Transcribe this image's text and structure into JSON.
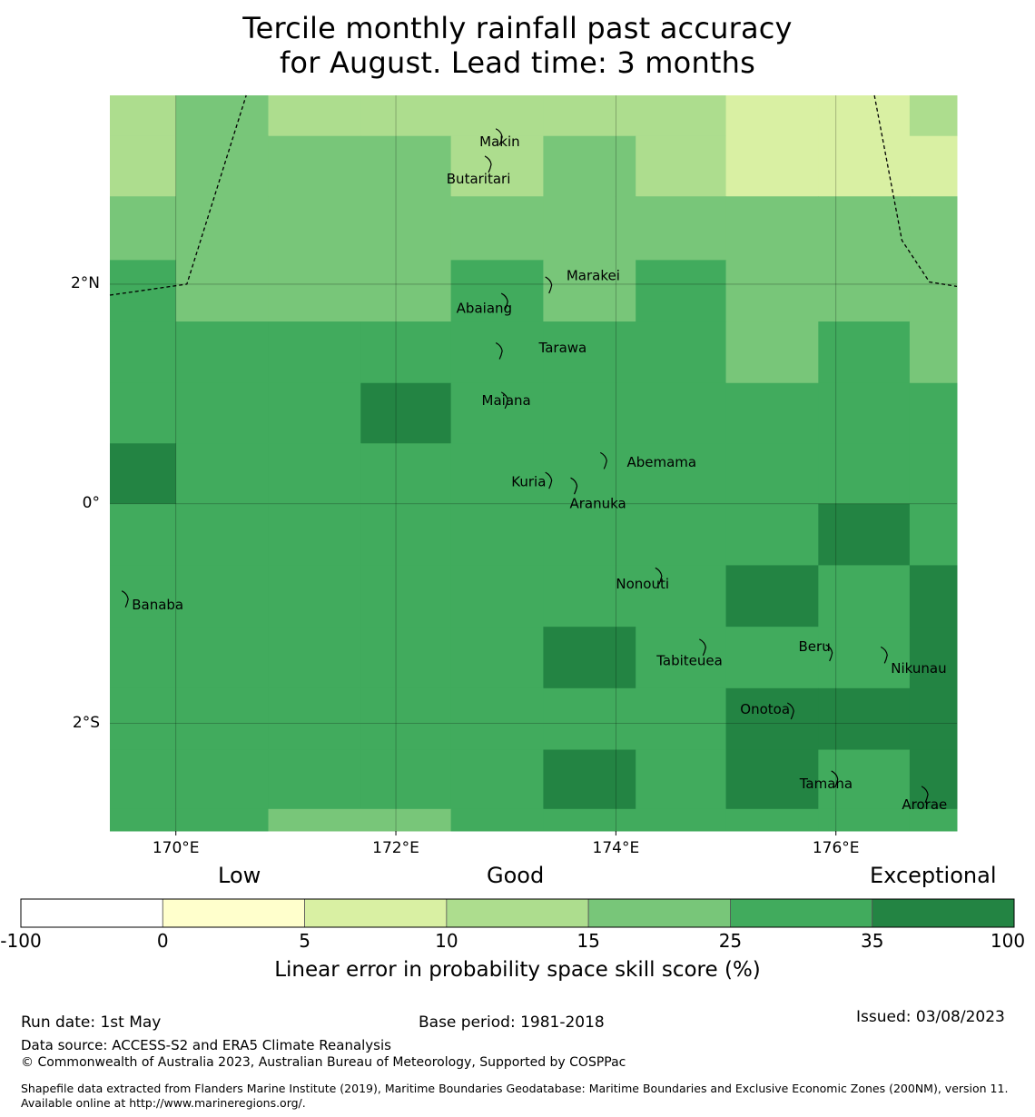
{
  "title": {
    "line1": "Tercile monthly rainfall past accuracy",
    "line2": "for August. Lead time: 3 months"
  },
  "map": {
    "extent": {
      "lon_min": 169.4,
      "lon_max": 177.1,
      "lat_min": -2.98,
      "lat_max": 3.72
    },
    "lat_ticks": [
      {
        "value": 2,
        "label": "2°N"
      },
      {
        "value": 0,
        "label": "0°"
      },
      {
        "value": -2,
        "label": "2°S"
      }
    ],
    "lon_ticks": [
      {
        "value": 170,
        "label": "170°E"
      },
      {
        "value": 172,
        "label": "172°E"
      },
      {
        "value": 174,
        "label": "174°E"
      },
      {
        "value": 176,
        "label": "176°E"
      }
    ],
    "grid_col_edges_lon": [
      169.4,
      170.0,
      170.84,
      171.68,
      172.5,
      173.34,
      174.18,
      175.0,
      175.84,
      176.67,
      177.1
    ],
    "grid_row_edges_lat": [
      3.72,
      3.35,
      2.8,
      2.22,
      1.66,
      1.1,
      0.55,
      0.0,
      -0.56,
      -1.12,
      -1.68,
      -2.24,
      -2.78,
      -2.98
    ],
    "grid_classes": [
      [
        3,
        4,
        3,
        3,
        3,
        3,
        3,
        2,
        2,
        3
      ],
      [
        3,
        4,
        4,
        4,
        3,
        4,
        3,
        2,
        2,
        2
      ],
      [
        4,
        4,
        4,
        4,
        4,
        4,
        4,
        4,
        4,
        4
      ],
      [
        5,
        4,
        4,
        4,
        5,
        4,
        5,
        4,
        4,
        4
      ],
      [
        5,
        5,
        5,
        5,
        5,
        5,
        5,
        4,
        5,
        4
      ],
      [
        5,
        5,
        5,
        6,
        5,
        5,
        5,
        5,
        5,
        5
      ],
      [
        6,
        5,
        5,
        5,
        5,
        5,
        5,
        5,
        5,
        5
      ],
      [
        5,
        5,
        5,
        5,
        5,
        5,
        5,
        5,
        6,
        5
      ],
      [
        5,
        5,
        5,
        5,
        5,
        5,
        5,
        6,
        5,
        6
      ],
      [
        5,
        5,
        5,
        5,
        5,
        6,
        5,
        5,
        5,
        6
      ],
      [
        5,
        5,
        5,
        5,
        5,
        5,
        5,
        6,
        6,
        6
      ],
      [
        5,
        5,
        5,
        5,
        5,
        6,
        5,
        6,
        5,
        6
      ],
      [
        5,
        5,
        4,
        4,
        5,
        5,
        5,
        5,
        5,
        5
      ]
    ],
    "boundary_lines": [
      [
        [
          169.4,
          1.9
        ],
        [
          170.1,
          2.0
        ],
        [
          170.64,
          3.72
        ]
      ],
      [
        [
          176.35,
          3.72
        ],
        [
          176.6,
          2.4
        ],
        [
          176.85,
          2.02
        ],
        [
          177.1,
          1.98
        ]
      ]
    ],
    "islands": [
      {
        "name": "Makin",
        "lon": 172.95,
        "lat": 3.35,
        "label_lon": 172.76,
        "label_lat": 3.3
      },
      {
        "name": "Butaritari",
        "lon": 172.85,
        "lat": 3.1,
        "label_lon": 172.46,
        "label_lat": 2.96
      },
      {
        "name": "Marakei",
        "lon": 173.4,
        "lat": 2.0,
        "label_lon": 173.55,
        "label_lat": 2.08
      },
      {
        "name": "Abaiang",
        "lon": 173.0,
        "lat": 1.85,
        "label_lon": 172.55,
        "label_lat": 1.78
      },
      {
        "name": "Tarawa",
        "lon": 172.95,
        "lat": 1.4,
        "label_lon": 173.3,
        "label_lat": 1.42
      },
      {
        "name": "Maiana",
        "lon": 173.0,
        "lat": 0.95,
        "label_lon": 172.78,
        "label_lat": 0.94
      },
      {
        "name": "Abemama",
        "lon": 173.9,
        "lat": 0.4,
        "label_lon": 174.1,
        "label_lat": 0.38
      },
      {
        "name": "Kuria",
        "lon": 173.4,
        "lat": 0.22,
        "label_lon": 173.05,
        "label_lat": 0.2
      },
      {
        "name": "Aranuka",
        "lon": 173.63,
        "lat": 0.17,
        "label_lon": 173.58,
        "label_lat": 0.0
      },
      {
        "name": "Banaba",
        "lon": 169.55,
        "lat": -0.86,
        "label_lon": 169.6,
        "label_lat": -0.92
      },
      {
        "name": "Nonouti",
        "lon": 174.4,
        "lat": -0.65,
        "label_lon": 174.0,
        "label_lat": -0.73
      },
      {
        "name": "Tabiteuea",
        "lon": 174.8,
        "lat": -1.3,
        "label_lon": 174.37,
        "label_lat": -1.43
      },
      {
        "name": "Beru",
        "lon": 175.95,
        "lat": -1.35,
        "label_lon": 175.66,
        "label_lat": -1.3
      },
      {
        "name": "Nikunau",
        "lon": 176.45,
        "lat": -1.37,
        "label_lon": 176.5,
        "label_lat": -1.5
      },
      {
        "name": "Onotoa",
        "lon": 175.6,
        "lat": -1.88,
        "label_lon": 175.13,
        "label_lat": -1.87
      },
      {
        "name": "Tamana",
        "lon": 176.0,
        "lat": -2.5,
        "label_lon": 175.67,
        "label_lat": -2.55
      },
      {
        "name": "Arorae",
        "lon": 176.82,
        "lat": -2.64,
        "label_lon": 176.6,
        "label_lat": -2.74
      }
    ]
  },
  "legend": {
    "categories": [
      {
        "label": "Low"
      },
      {
        "label": "Good"
      },
      {
        "label": "Exceptional"
      }
    ],
    "bins": [
      {
        "from": -100,
        "to": 0,
        "color": "#ffffff"
      },
      {
        "from": 0,
        "to": 5,
        "color": "#ffffcc"
      },
      {
        "from": 5,
        "to": 10,
        "color": "#d9f0a3"
      },
      {
        "from": 10,
        "to": 15,
        "color": "#addd8e"
      },
      {
        "from": 15,
        "to": 25,
        "color": "#78c679"
      },
      {
        "from": 25,
        "to": 35,
        "color": "#41ab5d"
      },
      {
        "from": 35,
        "to": 100,
        "color": "#238443"
      }
    ],
    "tick_labels": [
      "-100",
      "0",
      "5",
      "10",
      "15",
      "25",
      "35",
      "100"
    ],
    "axis_label": "Linear error in probability space skill score (%)"
  },
  "footer": {
    "run_date": "Run date: 1st May",
    "base_period": "Base period: 1981-2018",
    "issued": "Issued: 03/08/2023",
    "data_source": "Data source: ACCESS-S2 and ERA5 Climate Reanalysis",
    "copyright": "© Commonwealth of Australia 2023, Australian Bureau of Meteorology, Supported by COSPPac",
    "shapefile": "Shapefile data extracted from Flanders Marine Institute (2019), Maritime Boundaries Geodatabase: Maritime Boundaries and Exclusive Economic Zones (200NM), version 11. Available online at http://www.marineregions.org/."
  }
}
